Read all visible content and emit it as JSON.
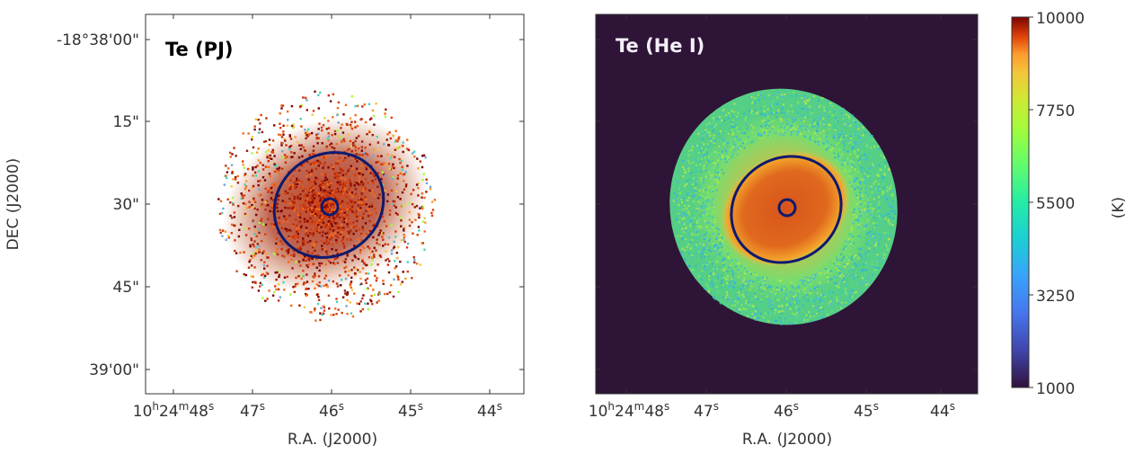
{
  "chart_data": [
    {
      "type": "heatmap",
      "panel_title": "Te (PJ)",
      "xlabel": "R.A. (J2000)",
      "ylabel": "DEC (J2000)",
      "x_ticks": [
        {
          "main": "10",
          "sup1": "h",
          "main2": "24",
          "sup2": "m",
          "main3": "48",
          "sup3": "s"
        },
        {
          "main": "47",
          "sup": "s"
        },
        {
          "main": "46",
          "sup": "s"
        },
        {
          "main": "45",
          "sup": "s"
        },
        {
          "main": "44",
          "sup": "s"
        }
      ],
      "y_ticks": [
        "-18°38'00\"",
        "15\"",
        "30\"",
        "45\"",
        "39'00\""
      ],
      "background": "#ffffff",
      "ellipses": [
        {
          "role": "outer",
          "color": "#0d1a6e"
        },
        {
          "role": "inner",
          "color": "#0d1a6e"
        }
      ]
    },
    {
      "type": "heatmap",
      "panel_title": "Te (He I)",
      "xlabel": "R.A. (J2000)",
      "ylabel": "",
      "x_ticks": [
        {
          "main": "10",
          "sup1": "h",
          "main2": "24",
          "sup2": "m",
          "main3": "48",
          "sup3": "s"
        },
        {
          "main": "47",
          "sup": "s"
        },
        {
          "main": "46",
          "sup": "s"
        },
        {
          "main": "45",
          "sup": "s"
        },
        {
          "main": "44",
          "sup": "s"
        }
      ],
      "y_ticks": [],
      "background": "#2e1437",
      "ellipses": [
        {
          "role": "outer",
          "color": "#0d1a6e"
        },
        {
          "role": "inner",
          "color": "#0d1a6e"
        }
      ]
    }
  ],
  "colorbar": {
    "label": "(K)",
    "ticks": [
      "10000",
      "7750",
      "5500",
      "3250",
      "1000"
    ],
    "range": [
      1000,
      10000
    ],
    "colormap": "turbo"
  }
}
